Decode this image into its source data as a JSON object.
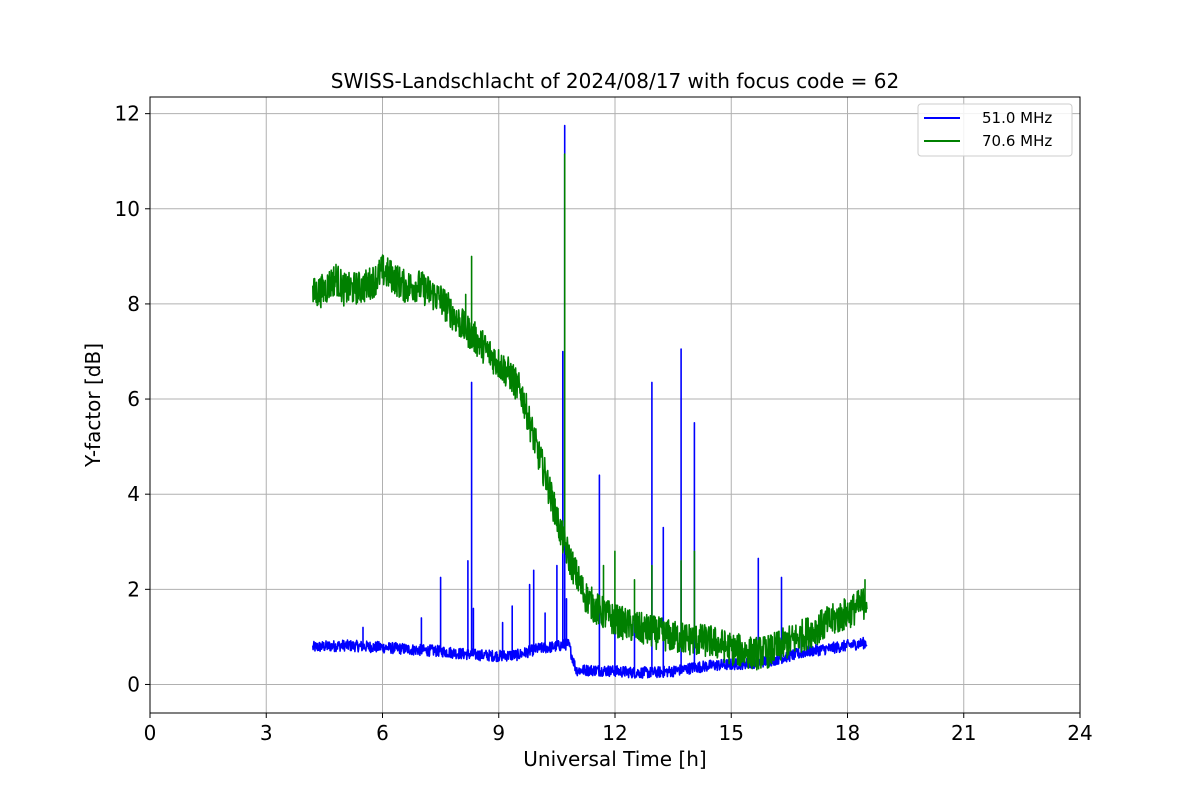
{
  "chart_data": {
    "type": "line",
    "title": "SWISS-Landschlacht of 2024/08/17 with focus code = 62",
    "xlabel": "Universal Time [h]",
    "ylabel": "Y-factor [dB]",
    "xlim": [
      0,
      24
    ],
    "ylim": [
      -0.6,
      12.35
    ],
    "xticks": [
      0,
      3,
      6,
      9,
      12,
      15,
      18,
      21,
      24
    ],
    "yticks": [
      0,
      2,
      4,
      6,
      8,
      10,
      12
    ],
    "grid": true,
    "legend_position": "top-right",
    "series": [
      {
        "name": "51.0 MHz",
        "color": "#0000ff",
        "x": [
          4.2,
          4.5,
          5.0,
          5.5,
          6.0,
          6.5,
          7.0,
          7.5,
          8.0,
          8.5,
          9.0,
          9.5,
          10.0,
          10.5,
          10.8,
          11.0,
          11.5,
          12.0,
          12.5,
          13.0,
          13.5,
          14.0,
          14.5,
          15.0,
          15.5,
          16.0,
          16.5,
          17.0,
          17.5,
          18.0,
          18.5
        ],
        "y": [
          0.78,
          0.8,
          0.82,
          0.8,
          0.78,
          0.75,
          0.72,
          0.7,
          0.65,
          0.62,
          0.6,
          0.62,
          0.75,
          0.8,
          0.85,
          0.3,
          0.3,
          0.28,
          0.25,
          0.25,
          0.28,
          0.35,
          0.4,
          0.42,
          0.45,
          0.5,
          0.6,
          0.7,
          0.75,
          0.82,
          0.88
        ],
        "noise": 0.12,
        "spikes": [
          [
            5.5,
            1.2
          ],
          [
            7.0,
            1.4
          ],
          [
            7.5,
            2.25
          ],
          [
            8.2,
            2.6
          ],
          [
            8.3,
            6.35
          ],
          [
            8.35,
            1.6
          ],
          [
            9.1,
            1.3
          ],
          [
            9.35,
            1.65
          ],
          [
            9.8,
            2.1
          ],
          [
            9.9,
            2.4
          ],
          [
            10.2,
            1.5
          ],
          [
            10.5,
            2.5
          ],
          [
            10.65,
            7.0
          ],
          [
            10.7,
            11.75
          ],
          [
            10.75,
            1.8
          ],
          [
            11.6,
            4.4
          ],
          [
            12.0,
            1.2
          ],
          [
            12.5,
            1.3
          ],
          [
            12.95,
            6.35
          ],
          [
            13.25,
            3.3
          ],
          [
            13.7,
            7.05
          ],
          [
            14.05,
            5.5
          ],
          [
            15.7,
            2.65
          ],
          [
            16.3,
            2.25
          ],
          [
            16.8,
            1.2
          ]
        ]
      },
      {
        "name": "70.6 MHz",
        "color": "#008000",
        "x": [
          4.2,
          4.5,
          4.8,
          5.0,
          5.5,
          5.8,
          6.0,
          6.3,
          6.6,
          6.9,
          7.2,
          7.5,
          7.8,
          8.0,
          8.3,
          8.6,
          9.0,
          9.3,
          9.6,
          9.8,
          10.0,
          10.2,
          10.4,
          10.6,
          10.8,
          11.0,
          11.2,
          11.5,
          12.0,
          12.5,
          13.0,
          13.5,
          14.0,
          14.5,
          15.0,
          15.3,
          15.6,
          16.0,
          16.5,
          17.0,
          17.5,
          18.0,
          18.5
        ],
        "y": [
          8.2,
          8.3,
          8.55,
          8.3,
          8.35,
          8.5,
          8.7,
          8.55,
          8.35,
          8.4,
          8.25,
          8.1,
          7.8,
          7.6,
          7.35,
          7.1,
          6.75,
          6.5,
          6.1,
          5.5,
          4.9,
          4.4,
          3.8,
          3.2,
          2.7,
          2.3,
          1.9,
          1.6,
          1.35,
          1.2,
          1.1,
          1.0,
          0.95,
          0.9,
          0.75,
          0.7,
          0.65,
          0.7,
          0.9,
          1.1,
          1.3,
          1.5,
          1.75
        ],
        "noise": 0.35,
        "spikes": [
          [
            8.15,
            8.2
          ],
          [
            8.3,
            9.0
          ],
          [
            10.45,
            3.9
          ],
          [
            10.7,
            11.15
          ],
          [
            11.7,
            2.5
          ],
          [
            12.0,
            2.8
          ],
          [
            12.5,
            2.2
          ],
          [
            12.95,
            2.5
          ],
          [
            13.7,
            2.6
          ],
          [
            14.05,
            2.8
          ],
          [
            18.45,
            2.2
          ]
        ]
      }
    ]
  }
}
